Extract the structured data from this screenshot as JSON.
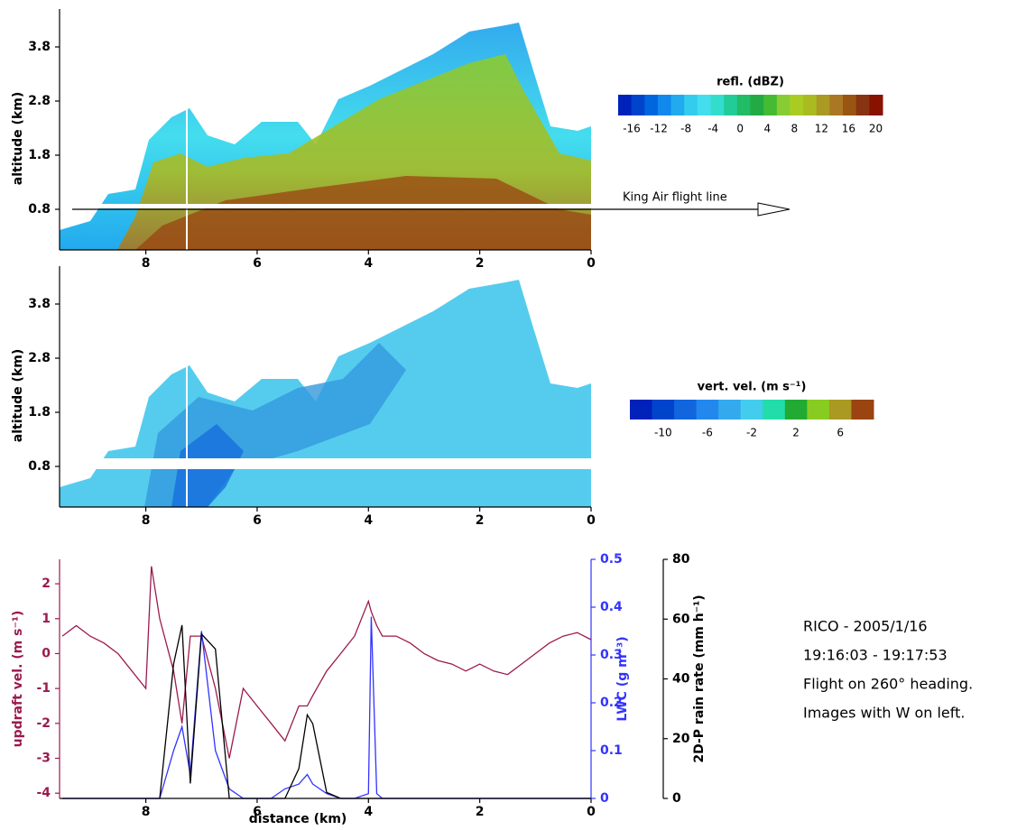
{
  "chart_data": [
    {
      "type": "radar-image",
      "ylabel": "altitude (km)",
      "xlim": [
        9.55,
        0
      ],
      "xticks": [
        8,
        6,
        4,
        2,
        0
      ],
      "ylim": [
        0.05,
        4.5
      ],
      "yticks": [
        0.8,
        1.8,
        2.8,
        3.8
      ],
      "annotation": "King Air flight line",
      "colorbar": {
        "label": "refl. (dBZ)",
        "clim": [
          -18,
          21
        ],
        "ticks": [
          -16,
          -12,
          -8,
          -4,
          0,
          4,
          8,
          12,
          16,
          20
        ],
        "colors": [
          "#0022bb",
          "#0044cc",
          "#0066dd",
          "#1188ee",
          "#22aaee",
          "#33ccee",
          "#44ddee",
          "#33ddcc",
          "#22cc99",
          "#22bb66",
          "#22aa44",
          "#44bb33",
          "#88cc33",
          "#aacc22",
          "#aabb22",
          "#aa9922",
          "#aa7722",
          "#995511",
          "#883311",
          "#881100"
        ]
      }
    },
    {
      "type": "radar-image",
      "ylabel": "altitude (km)",
      "xlim": [
        9.55,
        0
      ],
      "xticks": [
        8,
        6,
        4,
        2,
        0
      ],
      "ylim": [
        0.05,
        4.5
      ],
      "yticks": [
        0.8,
        1.8,
        2.8,
        3.8
      ],
      "colorbar": {
        "label": "vert. vel. (m s⁻¹)",
        "clim": [
          -13,
          9
        ],
        "ticks": [
          -10,
          -6,
          -2,
          2,
          6
        ],
        "colors": [
          "#0022bb",
          "#0044cc",
          "#1166dd",
          "#2288ee",
          "#33aaee",
          "#44ccee",
          "#22ddaa",
          "#22aa33",
          "#88cc22",
          "#aa9922",
          "#994411"
        ]
      }
    },
    {
      "type": "line",
      "xlabel": "distance (km)",
      "xlim": [
        9.55,
        0
      ],
      "xticks": [
        8,
        6,
        4,
        2,
        0
      ],
      "ylim": [
        -4.15,
        2.7
      ],
      "yticks": [
        -4,
        -3,
        -2,
        -1,
        0,
        1,
        2
      ],
      "y2lim": [
        0,
        0.5
      ],
      "y2ticks": [
        0,
        0.1,
        0.2,
        0.3,
        0.4,
        0.5
      ],
      "y3lim": [
        0,
        80
      ],
      "y3ticks": [
        0,
        20,
        40,
        60,
        80
      ],
      "x": [
        9.5,
        9.25,
        9,
        8.75,
        8.5,
        8.25,
        8,
        7.9,
        7.75,
        7.5,
        7.35,
        7.2,
        7,
        6.75,
        6.5,
        6.25,
        6,
        5.75,
        5.5,
        5.25,
        5.1,
        5,
        4.75,
        4.5,
        4.25,
        4,
        3.95,
        3.85,
        3.75,
        3.5,
        3.25,
        3,
        2.75,
        2.5,
        2.25,
        2,
        1.75,
        1.5,
        1.25,
        1,
        0.75,
        0.5,
        0.25,
        0
      ],
      "series": [
        {
          "name": "updraft vel. (m s⁻¹)",
          "color": "#9b1a4f",
          "axis": "y",
          "values": [
            0.5,
            0.8,
            0.5,
            0.3,
            0,
            -0.5,
            -1,
            2.5,
            1,
            -0.5,
            -2,
            0.5,
            0.5,
            -1,
            -3,
            -1,
            -1.5,
            -2,
            -2.5,
            -1.5,
            -1.5,
            -1.2,
            -0.5,
            0,
            0.5,
            1.5,
            1.2,
            0.8,
            0.5,
            0.5,
            0.3,
            0,
            -0.2,
            -0.3,
            -0.5,
            -0.3,
            -0.5,
            -0.6,
            -0.3,
            0,
            0.3,
            0.5,
            0.6,
            0.4
          ]
        },
        {
          "name": "LWC (g m⁻³)",
          "color": "#3333ff",
          "axis": "y2",
          "values": [
            0,
            0,
            0,
            0,
            0,
            0,
            0,
            0,
            0,
            0.1,
            0.15,
            0.05,
            0.35,
            0.1,
            0.02,
            0,
            0,
            0,
            0.02,
            0.03,
            0.05,
            0.03,
            0.01,
            0,
            0,
            0.01,
            0.38,
            0.01,
            0,
            0,
            0,
            0,
            0,
            0,
            0,
            0,
            0,
            0,
            0,
            0,
            0,
            0,
            0,
            0
          ]
        },
        {
          "name": "2D-P rain rate (mm h⁻¹)",
          "color": "#000000",
          "axis": "y3",
          "values": [
            0,
            0,
            0,
            0,
            0,
            0,
            0,
            0,
            0,
            45,
            58,
            5,
            55,
            50,
            0,
            0,
            0,
            0,
            0,
            10,
            28,
            25,
            2,
            0,
            0,
            0,
            0,
            0,
            0,
            0,
            0,
            0,
            0,
            0,
            0,
            0,
            0,
            0,
            0,
            0,
            0,
            0,
            0,
            0
          ]
        }
      ],
      "annotations": [
        "RICO - 2005/1/16",
        "19:16:03 - 19:17:53",
        "Flight on 260° heading.",
        "Images with W on left."
      ]
    }
  ]
}
